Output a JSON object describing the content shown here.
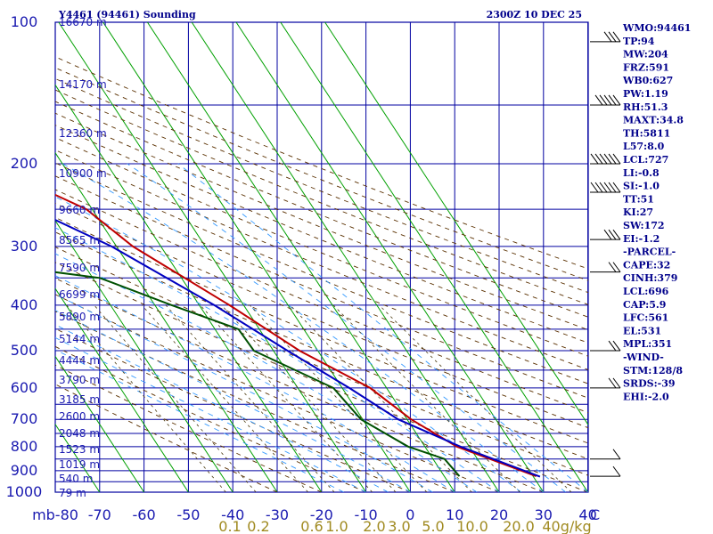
{
  "title_left": "Y4461 (94461) Sounding",
  "title_right": "2300Z 10 DEC 25",
  "colors": {
    "grid": "#0000a0",
    "isotherm_skew": "#00a000",
    "dry_adiabat": "#5a3000",
    "moist_adiabat": "#3399ff",
    "temperature": "#c00000",
    "dewpoint": "#005000",
    "parcel": "#0000c0",
    "text": "#00008b",
    "mixing_label": "#a08a20"
  },
  "indices": [
    "WMO:94461",
    "TP:94",
    "MW:204",
    "FRZ:591",
    "WB0:627",
    "PW:1.19",
    "RH:51.3",
    "MAXT:34.8",
    "TH:5811",
    "L57:8.0",
    "LCL:727",
    "LI:-0.8",
    "SI:-1.0",
    "TT:51",
    "KI:27",
    "SW:172",
    "EI:-1.2",
    "-PARCEL-",
    "CAPE:32",
    "CINH:379",
    "LCL:696",
    "CAP:5.9",
    "LFC:561",
    "EL:531",
    "MPL:351",
    "-WIND-",
    "STM:128/8",
    "SRDS:-39",
    "EHI:-2.0"
  ],
  "chart_data": {
    "type": "skew-t",
    "x_unit": "degC",
    "y_unit": "mb",
    "y_scale": "log",
    "xlim": [
      -80,
      40
    ],
    "ylim": [
      1000,
      100
    ],
    "x_ticks": [
      "mb-80",
      "-70",
      "-60",
      "-50",
      "-40",
      "-30",
      "-20",
      "-10",
      "0",
      "10",
      "20",
      "30",
      "40",
      "C"
    ],
    "pressure_ticks": [
      "100",
      "200",
      "300",
      "400",
      "500",
      "600",
      "700",
      "800",
      "900",
      "1000"
    ],
    "height_labels": [
      "16670 m",
      "14170 m",
      "12360 m",
      "10900 m",
      "9660 m",
      "8565 m",
      "7590 m",
      "6699 m",
      "5890 m",
      "5144 m",
      "4444 m",
      "3790 m",
      "3185 m",
      "2600 m",
      "2048 m",
      "1523 m",
      "1019 m",
      "540 m",
      "79 m"
    ],
    "mixing_ratio_labels": [
      "0.1",
      "0.2",
      "0.6",
      "1.0",
      "2.0",
      "3.0",
      "5.0",
      "10.0",
      "20.0",
      "40g/kg"
    ],
    "series": [
      {
        "name": "temperature",
        "points": [
          [
            30.7,
            925
          ],
          [
            17.2,
            800
          ],
          [
            10.9,
            700
          ],
          [
            6.3,
            600
          ],
          [
            -4.1,
            500
          ],
          [
            -13.2,
            400
          ],
          [
            -26.3,
            300
          ],
          [
            -31.3,
            250
          ],
          [
            -46.8,
            200
          ],
          [
            -62.5,
            150
          ],
          [
            -75.2,
            100
          ]
        ]
      },
      {
        "name": "dewpoint",
        "points": [
          [
            13.4,
            925
          ],
          [
            12.6,
            850
          ],
          [
            6.2,
            800
          ],
          [
            -0.4,
            700
          ],
          [
            -2.0,
            600
          ],
          [
            -14.4,
            500
          ],
          [
            -14.7,
            450
          ],
          [
            -26.2,
            400
          ],
          [
            -38.4,
            350
          ],
          [
            -67.6,
            320
          ],
          [
            -66.4,
            270
          ],
          [
            -76.2,
            200
          ],
          [
            -78.9,
            150
          ]
        ]
      },
      {
        "name": "parcel",
        "points": [
          [
            31.5,
            927
          ],
          [
            18.0,
            800
          ],
          [
            8.0,
            700
          ],
          [
            1.6,
            600
          ],
          [
            -6.8,
            500
          ],
          [
            -16.6,
            400
          ],
          [
            -31.1,
            300
          ],
          [
            -77.9,
            150
          ]
        ]
      }
    ],
    "wind_profile": [
      {
        "pressure_mb": 110,
        "speed_kt": 30
      },
      {
        "pressure_mb": 150,
        "speed_kt": 50
      },
      {
        "pressure_mb": 200,
        "speed_kt": 60
      },
      {
        "pressure_mb": 230,
        "speed_kt": 55
      },
      {
        "pressure_mb": 290,
        "speed_kt": 25
      },
      {
        "pressure_mb": 340,
        "speed_kt": 20
      },
      {
        "pressure_mb": 500,
        "speed_kt": 15
      },
      {
        "pressure_mb": 600,
        "speed_kt": 15
      },
      {
        "pressure_mb": 850,
        "speed_kt": 10
      },
      {
        "pressure_mb": 925,
        "speed_kt": 10
      }
    ]
  }
}
